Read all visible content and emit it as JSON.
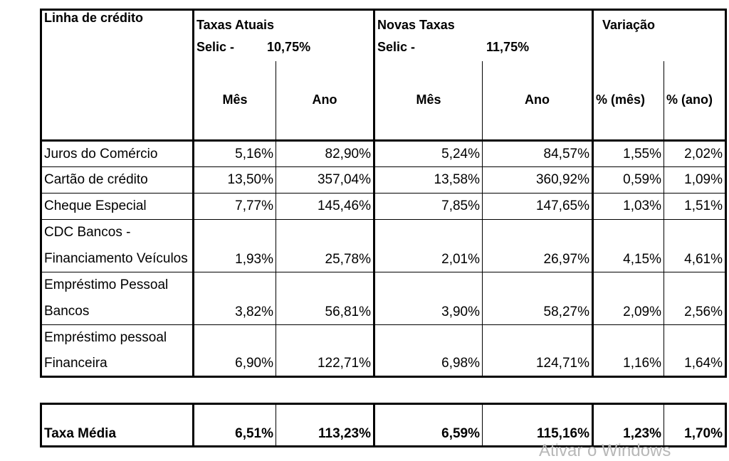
{
  "header": {
    "col_line": "Linha de crédito",
    "current": {
      "title": "Taxas Atuais",
      "selic_label": "Selic -",
      "selic_value": "10,75%",
      "month": "Mês",
      "year": "Ano"
    },
    "new": {
      "title": "Novas Taxas",
      "selic_label": "Selic -",
      "selic_value": "11,75%",
      "month": "Mês",
      "year": "Ano"
    },
    "variation": {
      "title": "Variação",
      "month": "% (mês)",
      "year": "% (ano)"
    }
  },
  "rows": [
    {
      "line1": "Juros do Comércio",
      "line2": "",
      "cur_month": "5,16%",
      "cur_year": "82,90%",
      "new_month": "5,24%",
      "new_year": "84,57%",
      "var_month": "1,55%",
      "var_year": "2,02%"
    },
    {
      "line1": "Cartão de crédito",
      "line2": "",
      "cur_month": "13,50%",
      "cur_year": "357,04%",
      "new_month": "13,58%",
      "new_year": "360,92%",
      "var_month": "0,59%",
      "var_year": "1,09%"
    },
    {
      "line1": "Cheque Especial",
      "line2": "",
      "cur_month": "7,77%",
      "cur_year": "145,46%",
      "new_month": "7,85%",
      "new_year": "147,65%",
      "var_month": "1,03%",
      "var_year": "1,51%"
    },
    {
      "line1": "CDC Bancos -",
      "line2": "Financiamento Veículos",
      "cur_month": "1,93%",
      "cur_year": "25,78%",
      "new_month": "2,01%",
      "new_year": "26,97%",
      "var_month": "4,15%",
      "var_year": "4,61%"
    },
    {
      "line1": "Empréstimo Pessoal",
      "line2": "Bancos",
      "cur_month": "3,82%",
      "cur_year": "56,81%",
      "new_month": "3,90%",
      "new_year": "58,27%",
      "var_month": "2,09%",
      "var_year": "2,56%"
    },
    {
      "line1": "Empréstimo pessoal",
      "line2": "Financeira",
      "cur_month": "6,90%",
      "cur_year": "122,71%",
      "new_month": "6,98%",
      "new_year": "124,71%",
      "var_month": "1,16%",
      "var_year": "1,64%"
    }
  ],
  "summary": {
    "label": "Taxa Média",
    "cur_month": "6,51%",
    "cur_year": "113,23%",
    "new_month": "6,59%",
    "new_year": "115,16%",
    "var_month": "1,23%",
    "var_year": "1,70%"
  },
  "watermark": "Ativar o Windows"
}
